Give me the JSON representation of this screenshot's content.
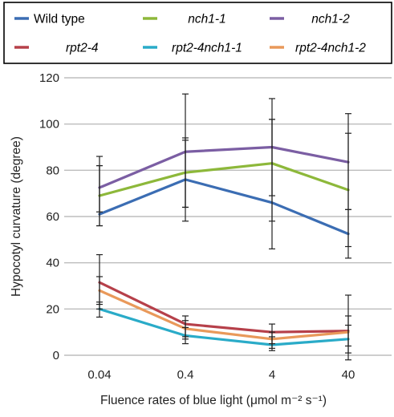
{
  "chart_data": {
    "type": "line",
    "xlabel": "Fluence rates of blue light (μmol m⁻² s⁻¹)",
    "ylabel": "Hypocotyl curvature (degree)",
    "categories": [
      "0.04",
      "0.4",
      "4",
      "40"
    ],
    "yticks": [
      0,
      20,
      40,
      60,
      80,
      100,
      120
    ],
    "ylim": [
      -5,
      122
    ],
    "grid": true,
    "legend_position": "top",
    "series": [
      {
        "name": "Wild type",
        "italic": false,
        "color": "#3b6db3",
        "values": [
          61,
          76,
          66,
          52.5
        ],
        "err_low": [
          56,
          58,
          46,
          42
        ],
        "err_high": [
          82,
          93,
          102,
          63
        ]
      },
      {
        "name": "nch1-1",
        "italic": true,
        "color": "#8db83a",
        "values": [
          69,
          79,
          83,
          71.5
        ],
        "err_low": [
          56,
          64,
          58,
          47
        ],
        "err_high": [
          86,
          94,
          111,
          96
        ]
      },
      {
        "name": "nch1-2",
        "italic": true,
        "color": "#7b5ea3",
        "values": [
          72.5,
          88,
          90,
          83.5
        ],
        "err_low": [
          62,
          64,
          69,
          63
        ],
        "err_high": [
          82,
          113,
          102,
          104.5
        ]
      },
      {
        "name": "rpt2-4",
        "italic": true,
        "color": "#b6404a",
        "values": [
          31.5,
          13.5,
          10,
          10.5
        ],
        "err_low": [
          20,
          8,
          5,
          4
        ],
        "err_high": [
          43.5,
          17,
          13.5,
          26
        ]
      },
      {
        "name": "rpt2-4nch1-1",
        "italic": true,
        "color": "#2aabc8",
        "values": [
          20,
          8.5,
          4.5,
          7
        ],
        "err_low": [
          16.5,
          5,
          2,
          -2
        ],
        "err_high": [
          23,
          12,
          8,
          13
        ]
      },
      {
        "name": "rpt2-4nch1-2",
        "italic": true,
        "color": "#e9995a",
        "values": [
          28,
          11.5,
          7,
          10
        ],
        "err_low": [
          22,
          7,
          3,
          1
        ],
        "err_high": [
          34,
          15,
          10,
          17
        ]
      }
    ]
  }
}
